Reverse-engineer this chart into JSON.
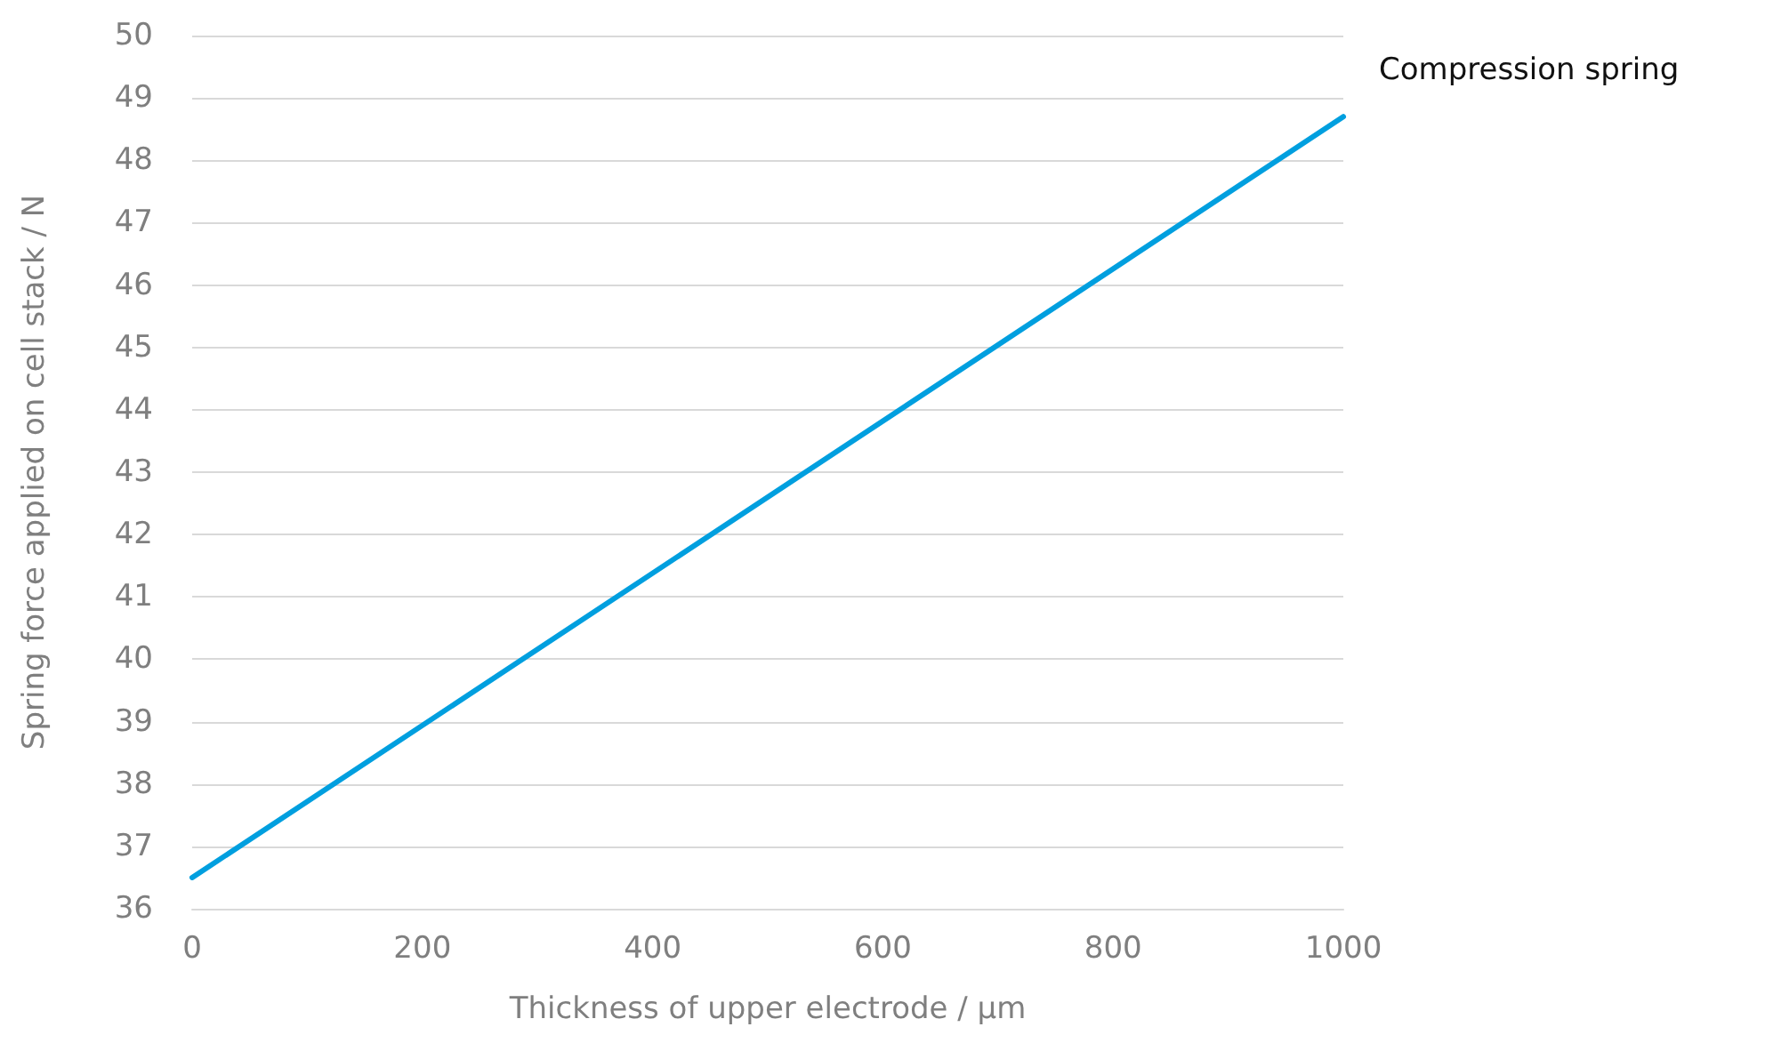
{
  "chart_data": {
    "type": "line",
    "xlabel": "Thickness of upper electrode / µm",
    "ylabel": "Spring force applied on cell stack / N",
    "x": [
      0,
      1000
    ],
    "series": [
      {
        "name": "Compression spring",
        "color": "#009fdf",
        "values": [
          36.5,
          48.7
        ]
      }
    ],
    "xlim": [
      0,
      1000
    ],
    "xticks": [
      0,
      200,
      400,
      600,
      800,
      1000
    ],
    "ylim": [
      36,
      50
    ],
    "yticks": [
      36,
      37,
      38,
      39,
      40,
      41,
      42,
      43,
      44,
      45,
      46,
      47,
      48,
      49,
      50
    ],
    "grid": "y",
    "legend": false,
    "marker": "none",
    "line_style": "solid"
  }
}
